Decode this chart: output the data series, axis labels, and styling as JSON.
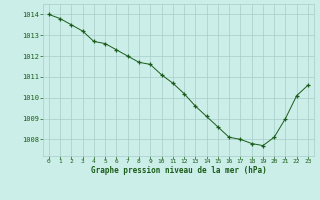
{
  "x": [
    0,
    1,
    2,
    3,
    4,
    5,
    6,
    7,
    8,
    9,
    10,
    11,
    12,
    13,
    14,
    15,
    16,
    17,
    18,
    19,
    20,
    21,
    22,
    23
  ],
  "y": [
    1014.0,
    1013.8,
    1013.5,
    1013.2,
    1012.7,
    1012.6,
    1012.3,
    1012.0,
    1011.7,
    1011.6,
    1011.1,
    1010.7,
    1010.2,
    1009.6,
    1009.1,
    1008.6,
    1008.1,
    1008.0,
    1007.8,
    1007.7,
    1008.1,
    1009.0,
    1010.1,
    1010.6
  ],
  "line_color": "#1a5c1a",
  "marker": "+",
  "marker_color": "#1a5c1a",
  "bg_color": "#cceee8",
  "grid_color": "#a8ccc8",
  "xlabel": "Graphe pression niveau de la mer (hPa)",
  "xlabel_color": "#1a5c1a",
  "tick_color": "#1a5c1a",
  "ylim_min": 1007.2,
  "ylim_max": 1014.5,
  "yticks": [
    1008,
    1009,
    1010,
    1011,
    1012,
    1013,
    1014
  ],
  "xticks": [
    0,
    1,
    2,
    3,
    4,
    5,
    6,
    7,
    8,
    9,
    10,
    11,
    12,
    13,
    14,
    15,
    16,
    17,
    18,
    19,
    20,
    21,
    22,
    23
  ]
}
